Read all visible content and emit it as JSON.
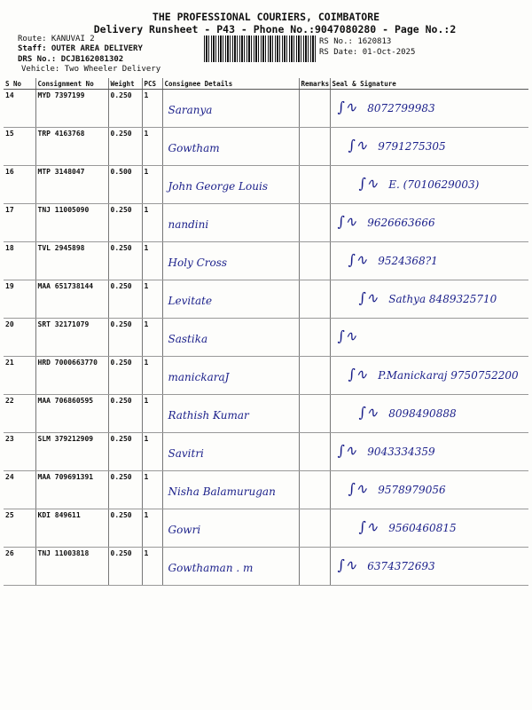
{
  "header": {
    "title": "THE PROFESSIONAL COURIERS, COIMBATORE",
    "subtitle": "Delivery Runsheet - P43 - Phone No.:9047080280 - Page No.:2",
    "route": "Route: KANUVAI 2",
    "staff": "Staff: OUTER AREA DELIVERY",
    "drs": "DRS No.: DCJB162081302",
    "vehicle": "Vehicle: Two Wheeler Delivery",
    "rs_no": "RS No.: 1620813",
    "rs_date": "RS Date: 01-Oct-2025"
  },
  "columns": [
    "S No",
    "Consignment No",
    "Weight",
    "PCS",
    "Consignee Details",
    "Remarks",
    "Seal & Signature"
  ],
  "rows": [
    {
      "sno": "14",
      "cn": "MYD 7397199",
      "weight": "0.250",
      "pcs": "1",
      "consignee": "Saranya",
      "signature": "8072799983"
    },
    {
      "sno": "15",
      "cn": "TRP 4163768",
      "weight": "0.250",
      "pcs": "1",
      "consignee": "Gowtham",
      "signature": "9791275305"
    },
    {
      "sno": "16",
      "cn": "MTP 3148047",
      "weight": "0.500",
      "pcs": "1",
      "consignee": "John George Louis",
      "signature": "E. (7010629003)"
    },
    {
      "sno": "17",
      "cn": "TNJ 11005090",
      "weight": "0.250",
      "pcs": "1",
      "consignee": "nandini",
      "signature": "9626663666"
    },
    {
      "sno": "18",
      "cn": "TVL 2945898",
      "weight": "0.250",
      "pcs": "1",
      "consignee": "Holy Cross",
      "signature": "9524368?1"
    },
    {
      "sno": "19",
      "cn": "MAA 651738144",
      "weight": "0.250",
      "pcs": "1",
      "consignee": "Levitate",
      "signature": "Sathya 8489325710"
    },
    {
      "sno": "20",
      "cn": "SRT 32171079",
      "weight": "0.250",
      "pcs": "1",
      "consignee": "Sastika",
      "signature": ""
    },
    {
      "sno": "21",
      "cn": "HRD 7000663770",
      "weight": "0.250",
      "pcs": "1",
      "consignee": "manickaraJ",
      "signature": "P.Manickaraj 9750752200"
    },
    {
      "sno": "22",
      "cn": "MAA 706860595",
      "weight": "0.250",
      "pcs": "1",
      "consignee": "Rathish Kumar",
      "signature": "8098490888"
    },
    {
      "sno": "23",
      "cn": "SLM 379212909",
      "weight": "0.250",
      "pcs": "1",
      "consignee": "Savitri",
      "signature": "9043334359"
    },
    {
      "sno": "24",
      "cn": "MAA 709691391",
      "weight": "0.250",
      "pcs": "1",
      "consignee": "Nisha Balamurugan",
      "signature": "9578979056"
    },
    {
      "sno": "25",
      "cn": "KDI 849611",
      "weight": "0.250",
      "pcs": "1",
      "consignee": "Gowri",
      "signature": "9560460815"
    },
    {
      "sno": "26",
      "cn": "TNJ 11003818",
      "weight": "0.250",
      "pcs": "1",
      "consignee": "Gowthaman . m",
      "signature": "6374372693"
    }
  ],
  "colors": {
    "ink": "#1a1f8a",
    "print": "#111111"
  }
}
